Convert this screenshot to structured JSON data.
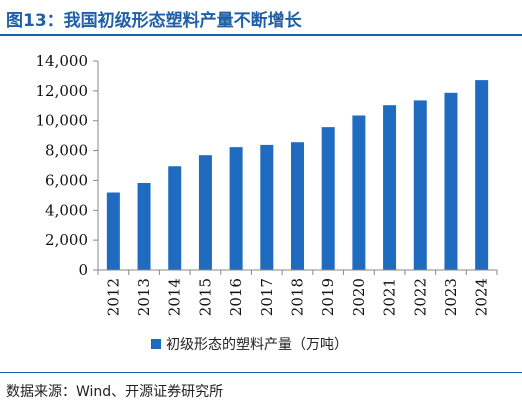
{
  "header": {
    "title": "图13：我国初级形态塑料产量不断增长"
  },
  "footer": {
    "source": "数据来源：Wind、开源证券研究所"
  },
  "colors": {
    "bar": "#1f6bbf",
    "title": "#1f5fa8",
    "axis": "#888888"
  },
  "chart_data": {
    "type": "bar",
    "title": "",
    "xlabel": "",
    "ylabel": "",
    "categories": [
      "2012",
      "2013",
      "2014",
      "2015",
      "2016",
      "2017",
      "2018",
      "2019",
      "2020",
      "2021",
      "2022",
      "2023",
      "2024"
    ],
    "series": [
      {
        "name": "初级形态的塑料产量（万吨）",
        "values": [
          5190,
          5830,
          6950,
          7690,
          8230,
          8380,
          8560,
          9570,
          10350,
          11040,
          11360,
          11870,
          12720
        ]
      }
    ],
    "ylim": [
      0,
      14000
    ],
    "yticks": [
      0,
      2000,
      4000,
      6000,
      8000,
      10000,
      12000,
      14000
    ],
    "ytick_labels": [
      "0",
      "2,000",
      "4,000",
      "6,000",
      "8,000",
      "10,000",
      "12,000",
      "14,000"
    ],
    "grid": false,
    "legend_position": "bottom"
  }
}
